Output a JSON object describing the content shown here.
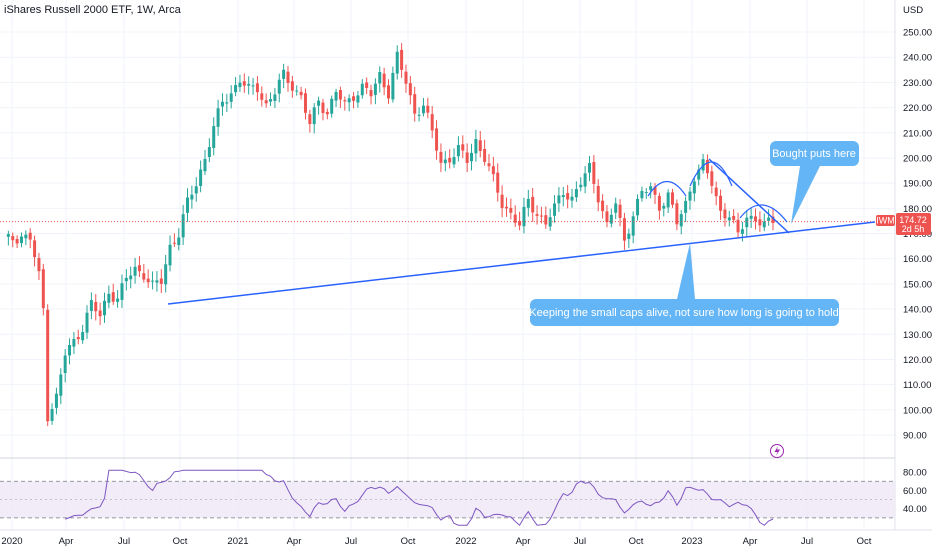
{
  "chart_data": {
    "type": "candlestick",
    "title": "iShares Russell 2000 ETF, 1W, Arca",
    "currency": "USD",
    "price_axis": {
      "min": 90,
      "max": 250,
      "ticks": [
        "250.00",
        "240.00",
        "230.00",
        "220.00",
        "210.00",
        "200.00",
        "190.00",
        "180.00",
        "170.00",
        "160.00",
        "150.00",
        "140.00",
        "130.00",
        "120.00",
        "110.00",
        "100.00",
        "90.00"
      ]
    },
    "time_axis": {
      "labels": [
        "2020",
        "Apr",
        "Jul",
        "Oct",
        "2021",
        "Apr",
        "Jul",
        "Oct",
        "2022",
        "Apr",
        "Jul",
        "Oct",
        "2023",
        "Apr",
        "Jul",
        "Oct"
      ]
    },
    "symbol_tag": {
      "symbol": "IWM",
      "price": "174.72",
      "countdown": "2d 5h"
    },
    "last_price": 174.72,
    "annotations": [
      {
        "id": "bubble-puts",
        "text": "Bought puts here"
      },
      {
        "id": "bubble-keeping",
        "text": "Keeping the small caps alive, not sure how long is going to hold"
      }
    ],
    "rsi": {
      "ticks": [
        "80.00",
        "60.00",
        "40.00"
      ],
      "upper_band": 70,
      "lower_band": 30,
      "mid": 50
    },
    "colors": {
      "up": "#26a69a",
      "down": "#ef5350",
      "trendline": "#2962ff",
      "bubble": "#64b5f6",
      "rsi_line": "#7e57c2",
      "rsi_band": "#ede7f6"
    }
  }
}
